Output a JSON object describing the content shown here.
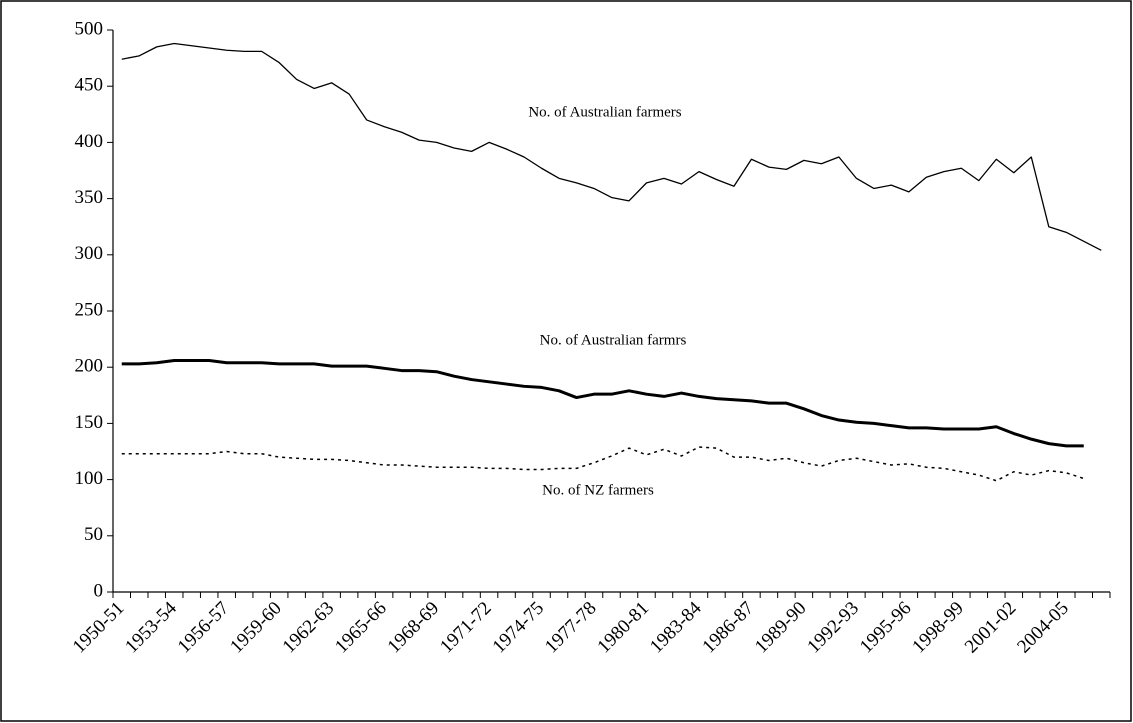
{
  "chart_data": {
    "type": "line",
    "categories": [
      "1950-51",
      null,
      null,
      "1953-54",
      null,
      null,
      "1956-57",
      null,
      null,
      "1959-60",
      null,
      null,
      "1962-63",
      null,
      null,
      "1965-66",
      null,
      null,
      "1968-69",
      null,
      null,
      "1971-72",
      null,
      null,
      "1974-75",
      null,
      null,
      "1977-78",
      null,
      null,
      "1980-81",
      null,
      null,
      "1983-84",
      null,
      null,
      "1986-87",
      null,
      null,
      "1989-90",
      null,
      null,
      "1992-93",
      null,
      null,
      "1995-96",
      null,
      null,
      "1998-99",
      null,
      null,
      "2001-02",
      null,
      null,
      "2004-05",
      null,
      null
    ],
    "series": [
      {
        "name": "No. of Australian farmers",
        "color": "#000000",
        "style": "thin",
        "values": [
          474,
          477,
          485,
          488,
          486,
          484,
          482,
          481,
          481,
          471,
          456,
          448,
          453,
          443,
          420,
          414,
          409,
          402,
          400,
          395,
          392,
          400,
          394,
          387,
          377,
          368,
          364,
          359,
          351,
          348,
          364,
          368,
          363,
          374,
          367,
          361,
          385,
          378,
          376,
          384,
          381,
          387,
          368,
          359,
          362,
          356,
          369,
          374,
          377,
          366,
          385,
          373,
          387,
          325,
          320,
          312,
          304
        ]
      },
      {
        "name": "No. of Australian farmrs",
        "color": "#000000",
        "style": "thick",
        "values": [
          203,
          203,
          204,
          206,
          206,
          206,
          204,
          204,
          204,
          203,
          203,
          203,
          201,
          201,
          201,
          199,
          197,
          197,
          196,
          192,
          189,
          187,
          185,
          183,
          182,
          179,
          173,
          176,
          176,
          179,
          176,
          174,
          177,
          174,
          172,
          171,
          170,
          168,
          168,
          163,
          157,
          153,
          151,
          150,
          148,
          146,
          146,
          145,
          145,
          145,
          147,
          141,
          136,
          132,
          130,
          130,
          null
        ]
      },
      {
        "name": "No. of NZ farmers",
        "color": "#000000",
        "style": "dotted",
        "values": [
          123,
          123,
          123,
          123,
          123,
          123,
          125,
          123,
          123,
          120,
          119,
          118,
          118,
          117,
          115,
          113,
          113,
          112,
          111,
          111,
          111,
          110,
          110,
          109,
          109,
          110,
          110,
          115,
          121,
          128,
          122,
          127,
          121,
          129,
          128,
          120,
          120,
          117,
          119,
          115,
          112,
          117,
          119,
          116,
          113,
          114,
          111,
          110,
          107,
          104,
          99,
          107,
          104,
          108,
          106,
          101,
          null
        ]
      }
    ],
    "ylim": [
      0,
      500
    ],
    "yticks": [
      0,
      50,
      100,
      150,
      200,
      250,
      300,
      350,
      400,
      450,
      500
    ],
    "grid": false
  }
}
